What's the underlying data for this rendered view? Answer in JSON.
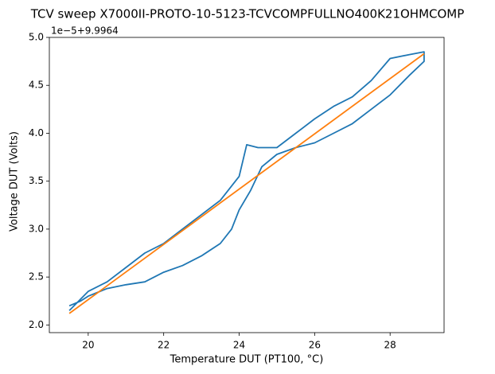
{
  "chart_data": {
    "type": "line",
    "title": "TCV sweep X7000II-PROTO-10-5123-TCVCOMPFULLNO400K21OHMCOMP",
    "x_label": "Temperature DUT (PT100, °C)",
    "y_label": "Voltage DUT (Volts)",
    "y_offset_text": "1e−5+9.9964",
    "xlim": [
      18.97,
      29.43
    ],
    "ylim": [
      1.92,
      5.0
    ],
    "xticks": [
      20,
      22,
      24,
      26,
      28
    ],
    "yticks": [
      {
        "value": 2,
        "label": "2.0"
      },
      {
        "value": 2.5,
        "label": "2.5"
      },
      {
        "value": 3,
        "label": "3.0"
      },
      {
        "value": 3.5,
        "label": "3.5"
      },
      {
        "value": 4,
        "label": "4.0"
      },
      {
        "value": 4.5,
        "label": "4.5"
      },
      {
        "value": 5,
        "label": "5.0"
      }
    ],
    "series": [
      {
        "color": "#1f77b4",
        "x": [
          19.5,
          19.8,
          20.0,
          20.5,
          21.0,
          21.5,
          22.0,
          22.5,
          23.0,
          23.5,
          23.8,
          24.0,
          24.3,
          24.6,
          25.0,
          25.5,
          26.0,
          26.5,
          27.0,
          27.5,
          28.0,
          28.5,
          28.9,
          28.9,
          28.5,
          28.0,
          27.5,
          27.0,
          26.5,
          26.0,
          25.5,
          25.0,
          24.5,
          24.2,
          24.0,
          23.5,
          23.0,
          22.5,
          22.0,
          21.5,
          21.0,
          20.5,
          20.0,
          19.5
        ],
        "values": [
          2.2,
          2.25,
          2.3,
          2.38,
          2.42,
          2.45,
          2.55,
          2.62,
          2.72,
          2.85,
          3.0,
          3.2,
          3.4,
          3.65,
          3.78,
          3.85,
          3.9,
          4.0,
          4.1,
          4.25,
          4.4,
          4.6,
          4.75,
          4.85,
          4.82,
          4.78,
          4.55,
          4.38,
          4.28,
          4.15,
          4.0,
          3.85,
          3.85,
          3.88,
          3.55,
          3.3,
          3.15,
          3.0,
          2.85,
          2.75,
          2.6,
          2.45,
          2.35,
          2.15
        ]
      },
      {
        "color": "#ff7f0e",
        "x": [
          19.5,
          28.9
        ],
        "values": [
          2.12,
          4.83
        ]
      }
    ]
  }
}
